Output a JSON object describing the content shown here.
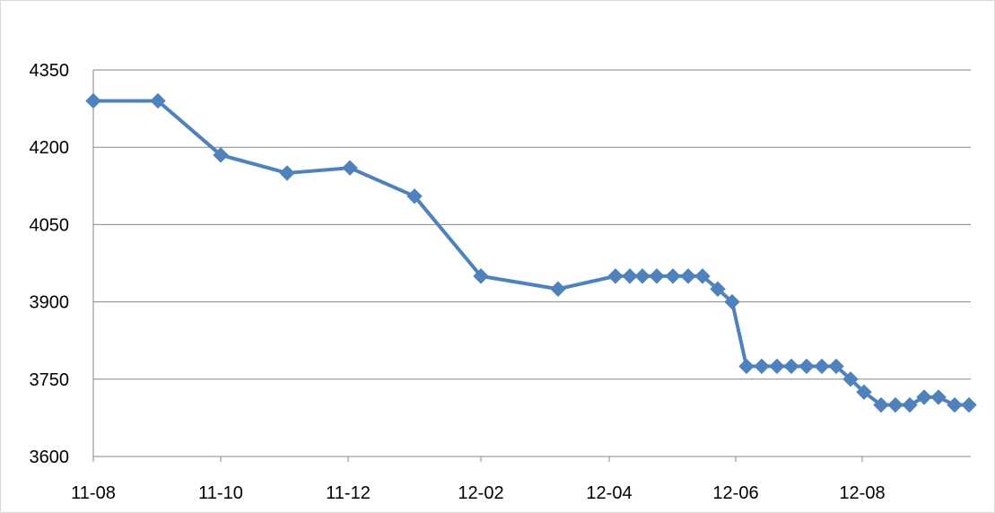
{
  "chart_data": {
    "type": "line",
    "title": "",
    "xlabel": "",
    "ylabel": "",
    "grid": true,
    "ylim": [
      3600,
      4350
    ],
    "yticks": [
      "4350",
      "4200",
      "4050",
      "3900",
      "3750",
      "3600"
    ],
    "xticks": [
      "11-08",
      "11-10",
      "11-12",
      "12-02",
      "12-04",
      "12-06",
      "12-08"
    ],
    "colors": {
      "series": "#4f81bd",
      "grid": "#868686",
      "axis": "#868686"
    },
    "marker": "diamond",
    "series": [
      {
        "values": [
          4290,
          4290,
          4185,
          4150,
          4160,
          4105,
          3950,
          3925,
          3950,
          3950,
          3950,
          3950,
          3950,
          3950,
          3950,
          3925,
          3900,
          3775,
          3775,
          3775,
          3775,
          3775,
          3775,
          3775,
          3750,
          3725,
          3700,
          3700,
          3700,
          3715,
          3715,
          3700,
          3700
        ]
      }
    ]
  }
}
